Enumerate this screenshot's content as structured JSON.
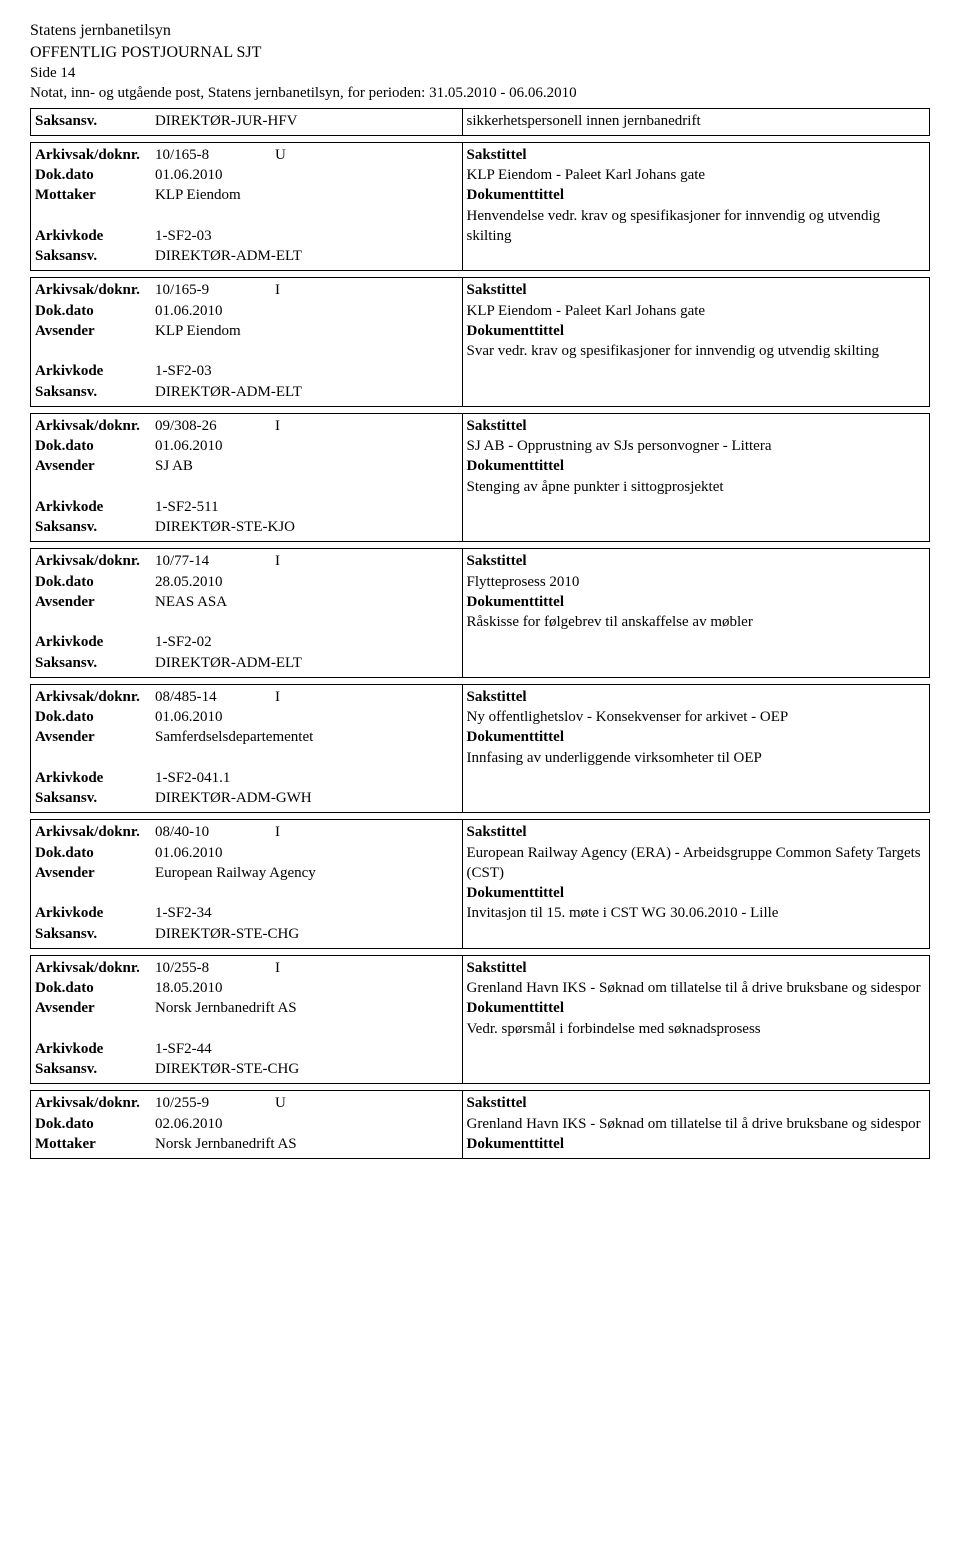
{
  "header": {
    "org": "Statens jernbanetilsyn",
    "journal": "OFFENTLIG POSTJOURNAL SJT",
    "side": "Side 14",
    "subtitle": "Notat, inn- og utgående post, Statens jernbanetilsyn, for perioden: 31.05.2010 - 06.06.2010"
  },
  "labels": {
    "saksansv": "Saksansv.",
    "arkivsak": "Arkivsak/doknr.",
    "dokdato": "Dok.dato",
    "mottaker": "Mottaker",
    "avsender": "Avsender",
    "arkivkode": "Arkivkode",
    "sakstittel": "Sakstittel",
    "dokumenttittel": "Dokumenttittel"
  },
  "top": {
    "saksansv": "DIREKTØR-JUR-HFV",
    "right": "sikkerhetspersonell innen jernbanedrift"
  },
  "entries": [
    {
      "arkivsak": "10/165-8",
      "io": "U",
      "dokdato": "01.06.2010",
      "party_label": "Mottaker",
      "party": "KLP Eiendom",
      "arkivkode": "1-SF2-03",
      "saksansv": "DIREKTØR-ADM-ELT",
      "sakstittel": "KLP Eiendom - Paleet Karl Johans gate",
      "doktittel": "Henvendelse vedr. krav og spesifikasjoner for innvendig og utvendig skilting"
    },
    {
      "arkivsak": "10/165-9",
      "io": "I",
      "dokdato": "01.06.2010",
      "party_label": "Avsender",
      "party": "KLP Eiendom",
      "arkivkode": "1-SF2-03",
      "saksansv": "DIREKTØR-ADM-ELT",
      "sakstittel": "KLP Eiendom - Paleet Karl Johans gate",
      "doktittel": "Svar vedr. krav og spesifikasjoner for innvendig og utvendig skilting"
    },
    {
      "arkivsak": "09/308-26",
      "io": "I",
      "dokdato": "01.06.2010",
      "party_label": "Avsender",
      "party": "SJ AB",
      "arkivkode": "1-SF2-511",
      "saksansv": "DIREKTØR-STE-KJO",
      "sakstittel": "SJ AB - Opprustning av SJs personvogner - Littera",
      "doktittel": "Stenging av åpne punkter i sittogprosjektet"
    },
    {
      "arkivsak": "10/77-14",
      "io": "I",
      "dokdato": "28.05.2010",
      "party_label": "Avsender",
      "party": "NEAS ASA",
      "arkivkode": "1-SF2-02",
      "saksansv": "DIREKTØR-ADM-ELT",
      "sakstittel": "Flytteprosess 2010",
      "doktittel": "Råskisse for følgebrev til anskaffelse av møbler"
    },
    {
      "arkivsak": "08/485-14",
      "io": "I",
      "dokdato": "01.06.2010",
      "party_label": "Avsender",
      "party": "Samferdselsdepartementet",
      "arkivkode": "1-SF2-041.1",
      "saksansv": "DIREKTØR-ADM-GWH",
      "sakstittel": "Ny offentlighetslov - Konsekvenser for arkivet - OEP",
      "doktittel": "Innfasing av underliggende virksomheter til OEP"
    },
    {
      "arkivsak": "08/40-10",
      "io": "I",
      "dokdato": "01.06.2010",
      "party_label": "Avsender",
      "party": "European Railway Agency",
      "arkivkode": "1-SF2-34",
      "saksansv": "DIREKTØR-STE-CHG",
      "sakstittel": "European Railway Agency (ERA) - Arbeidsgruppe Common Safety Targets (CST)",
      "doktittel": "Invitasjon til 15. møte i CST WG 30.06.2010 - Lille"
    },
    {
      "arkivsak": "10/255-8",
      "io": "I",
      "dokdato": "18.05.2010",
      "party_label": "Avsender",
      "party": "Norsk Jernbanedrift AS",
      "arkivkode": "1-SF2-44",
      "saksansv": "DIREKTØR-STE-CHG",
      "sakstittel": "Grenland Havn IKS - Søknad om tillatelse til å drive bruksbane og sidespor",
      "doktittel": "Vedr. spørsmål i forbindelse med søknadsprosess"
    },
    {
      "arkivsak": "10/255-9",
      "io": "U",
      "dokdato": "02.06.2010",
      "party_label": "Mottaker",
      "party": "Norsk Jernbanedrift AS",
      "arkivkode": "",
      "saksansv": "",
      "sakstittel": "Grenland Havn IKS - Søknad om tillatelse til å drive bruksbane og sidespor",
      "doktittel": "",
      "truncated": true
    }
  ]
}
